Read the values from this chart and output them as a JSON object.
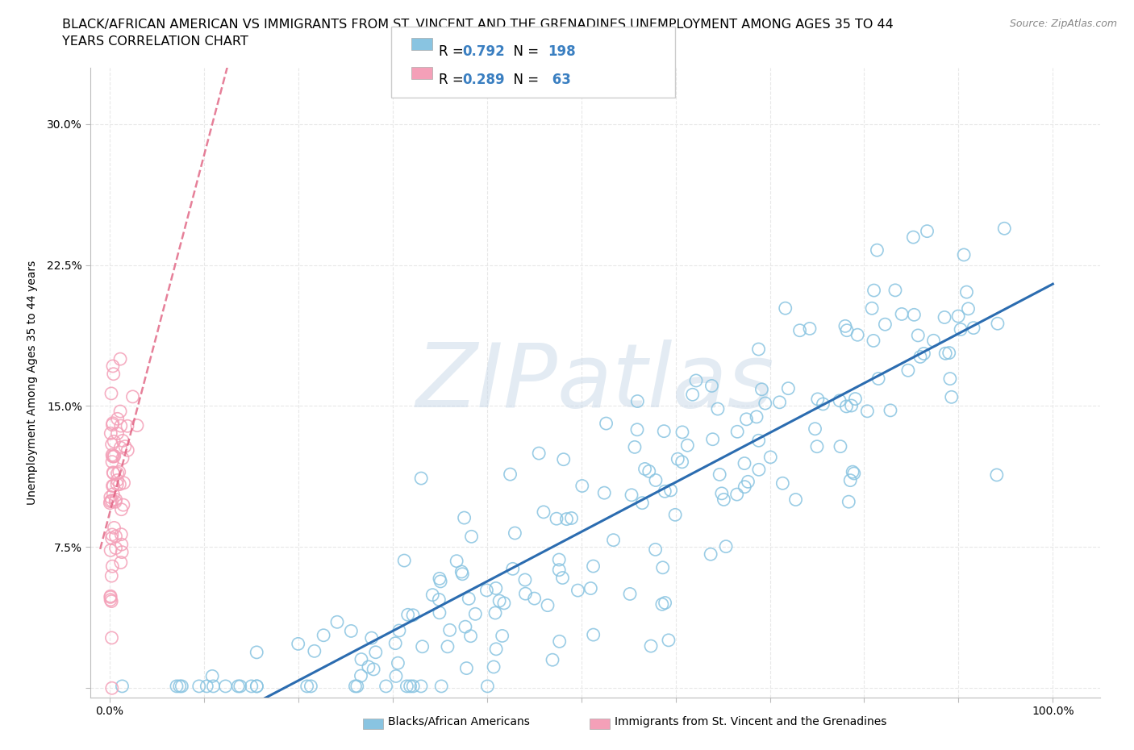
{
  "title_line1": "BLACK/AFRICAN AMERICAN VS IMMIGRANTS FROM ST. VINCENT AND THE GRENADINES UNEMPLOYMENT AMONG AGES 35 TO 44",
  "title_line2": "YEARS CORRELATION CHART",
  "source_text": "Source: ZipAtlas.com",
  "ylabel": "Unemployment Among Ages 35 to 44 years",
  "xlim": [
    -0.02,
    1.05
  ],
  "ylim": [
    -0.005,
    0.33
  ],
  "xticks": [
    0.0,
    0.1,
    0.2,
    0.3,
    0.4,
    0.5,
    0.6,
    0.7,
    0.8,
    0.9,
    1.0
  ],
  "xticklabels": [
    "0.0%",
    "",
    "",
    "",
    "",
    "",
    "",
    "",
    "",
    "",
    "100.0%"
  ],
  "yticks": [
    0.0,
    0.075,
    0.15,
    0.225,
    0.3
  ],
  "yticklabels": [
    "",
    "7.5%",
    "15.0%",
    "22.5%",
    "30.0%"
  ],
  "watermark": "ZIPatlas",
  "blue_scatter_color": "#89c4e1",
  "pink_scatter_color": "#f4a0b8",
  "blue_line_color": "#2b6cb0",
  "pink_line_color": "#e06080",
  "blue_r": 0.792,
  "blue_n": 198,
  "pink_r": 0.289,
  "pink_n": 63,
  "background_color": "#ffffff",
  "grid_color": "#e8e8e8",
  "title_fontsize": 11.5,
  "axis_label_fontsize": 10,
  "tick_fontsize": 10,
  "legend_fontsize": 12,
  "legend_r_color": "#3a7fc1",
  "legend_n_color": "#e05030",
  "bottom_legend_blue_label": "Blacks/African Americans",
  "bottom_legend_pink_label": "Immigrants from St. Vincent and the Grenadines"
}
